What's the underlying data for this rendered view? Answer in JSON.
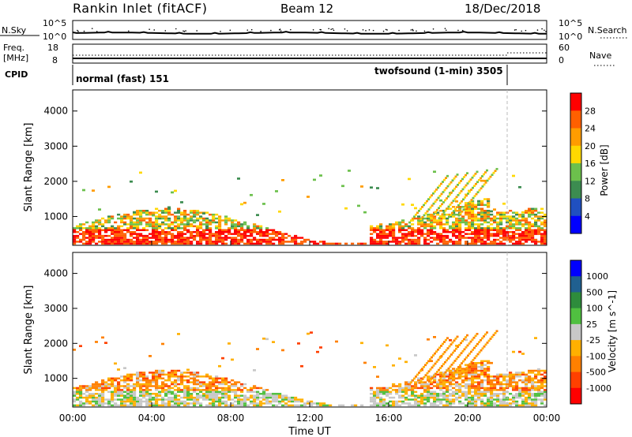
{
  "header": {
    "station": "Rankin Inlet (fitACF)",
    "beam": "Beam 12",
    "date": "18/Dec/2018"
  },
  "top_panels": {
    "nsky_label": "N.Sky",
    "nsky_ticks": [
      "10^5",
      "10^0"
    ],
    "nsearch_label": "N.Search",
    "nsearch_ticks": [
      "10^5",
      "10^0"
    ],
    "freq_label_1": "Freq.",
    "freq_label_2": "[MHz]",
    "freq_ticks": [
      "18",
      "8"
    ],
    "nave_label": "Nave",
    "nave_ticks": [
      "60",
      "0"
    ],
    "cpid_label": "CPID",
    "cpid_mode_1": "normal (fast) 151",
    "cpid_mode_2": "twofsound (1-min) 3505"
  },
  "chart_data": [
    {
      "type": "heatmap",
      "name": "power_panel",
      "ylabel": "Slant Range [km]",
      "yticks": [
        "4000",
        "3000",
        "2000",
        "1000"
      ],
      "y_values": [
        4000,
        3000,
        2000,
        1000
      ],
      "ylim": [
        180,
        4600
      ],
      "xlim_hours": [
        0,
        24
      ],
      "colorbar_label": "Power [dB]",
      "colorbar_ticks": [
        "28",
        "24",
        "20",
        "16",
        "12",
        "8",
        "4"
      ],
      "colorbar_values": [
        28,
        24,
        20,
        16,
        12,
        8,
        4
      ],
      "colorbar_range": [
        0,
        32
      ],
      "colors": [
        "#0000ff",
        "#2050c0",
        "#3c8c50",
        "#6cc04c",
        "#ffd800",
        "#ff9c00",
        "#ff6000",
        "#ff0000"
      ]
    },
    {
      "type": "heatmap",
      "name": "velocity_panel",
      "ylabel": "Slant Range [km]",
      "yticks": [
        "4000",
        "3000",
        "2000",
        "1000"
      ],
      "y_values": [
        4000,
        3000,
        2000,
        1000
      ],
      "ylim": [
        180,
        4600
      ],
      "xlim_hours": [
        0,
        24
      ],
      "colorbar_label": "Velocity [m s^-1]",
      "colorbar_ticks": [
        "1000",
        "500",
        "100",
        "25",
        "-25",
        "-100",
        "-500",
        "-1000"
      ],
      "colors": [
        "#ff0000",
        "#ff4000",
        "#ff8000",
        "#ffb000",
        "#c8c8c8",
        "#50c040",
        "#2e8c3c",
        "#206090",
        "#0000ff"
      ]
    }
  ],
  "time_axis": {
    "label": "Time UT",
    "ticks": [
      "00:00",
      "04:00",
      "08:00",
      "12:00",
      "16:00",
      "20:00",
      "00:00"
    ],
    "tick_hours": [
      0,
      4,
      8,
      12,
      16,
      20,
      24
    ],
    "mode_change_hour": 22
  }
}
